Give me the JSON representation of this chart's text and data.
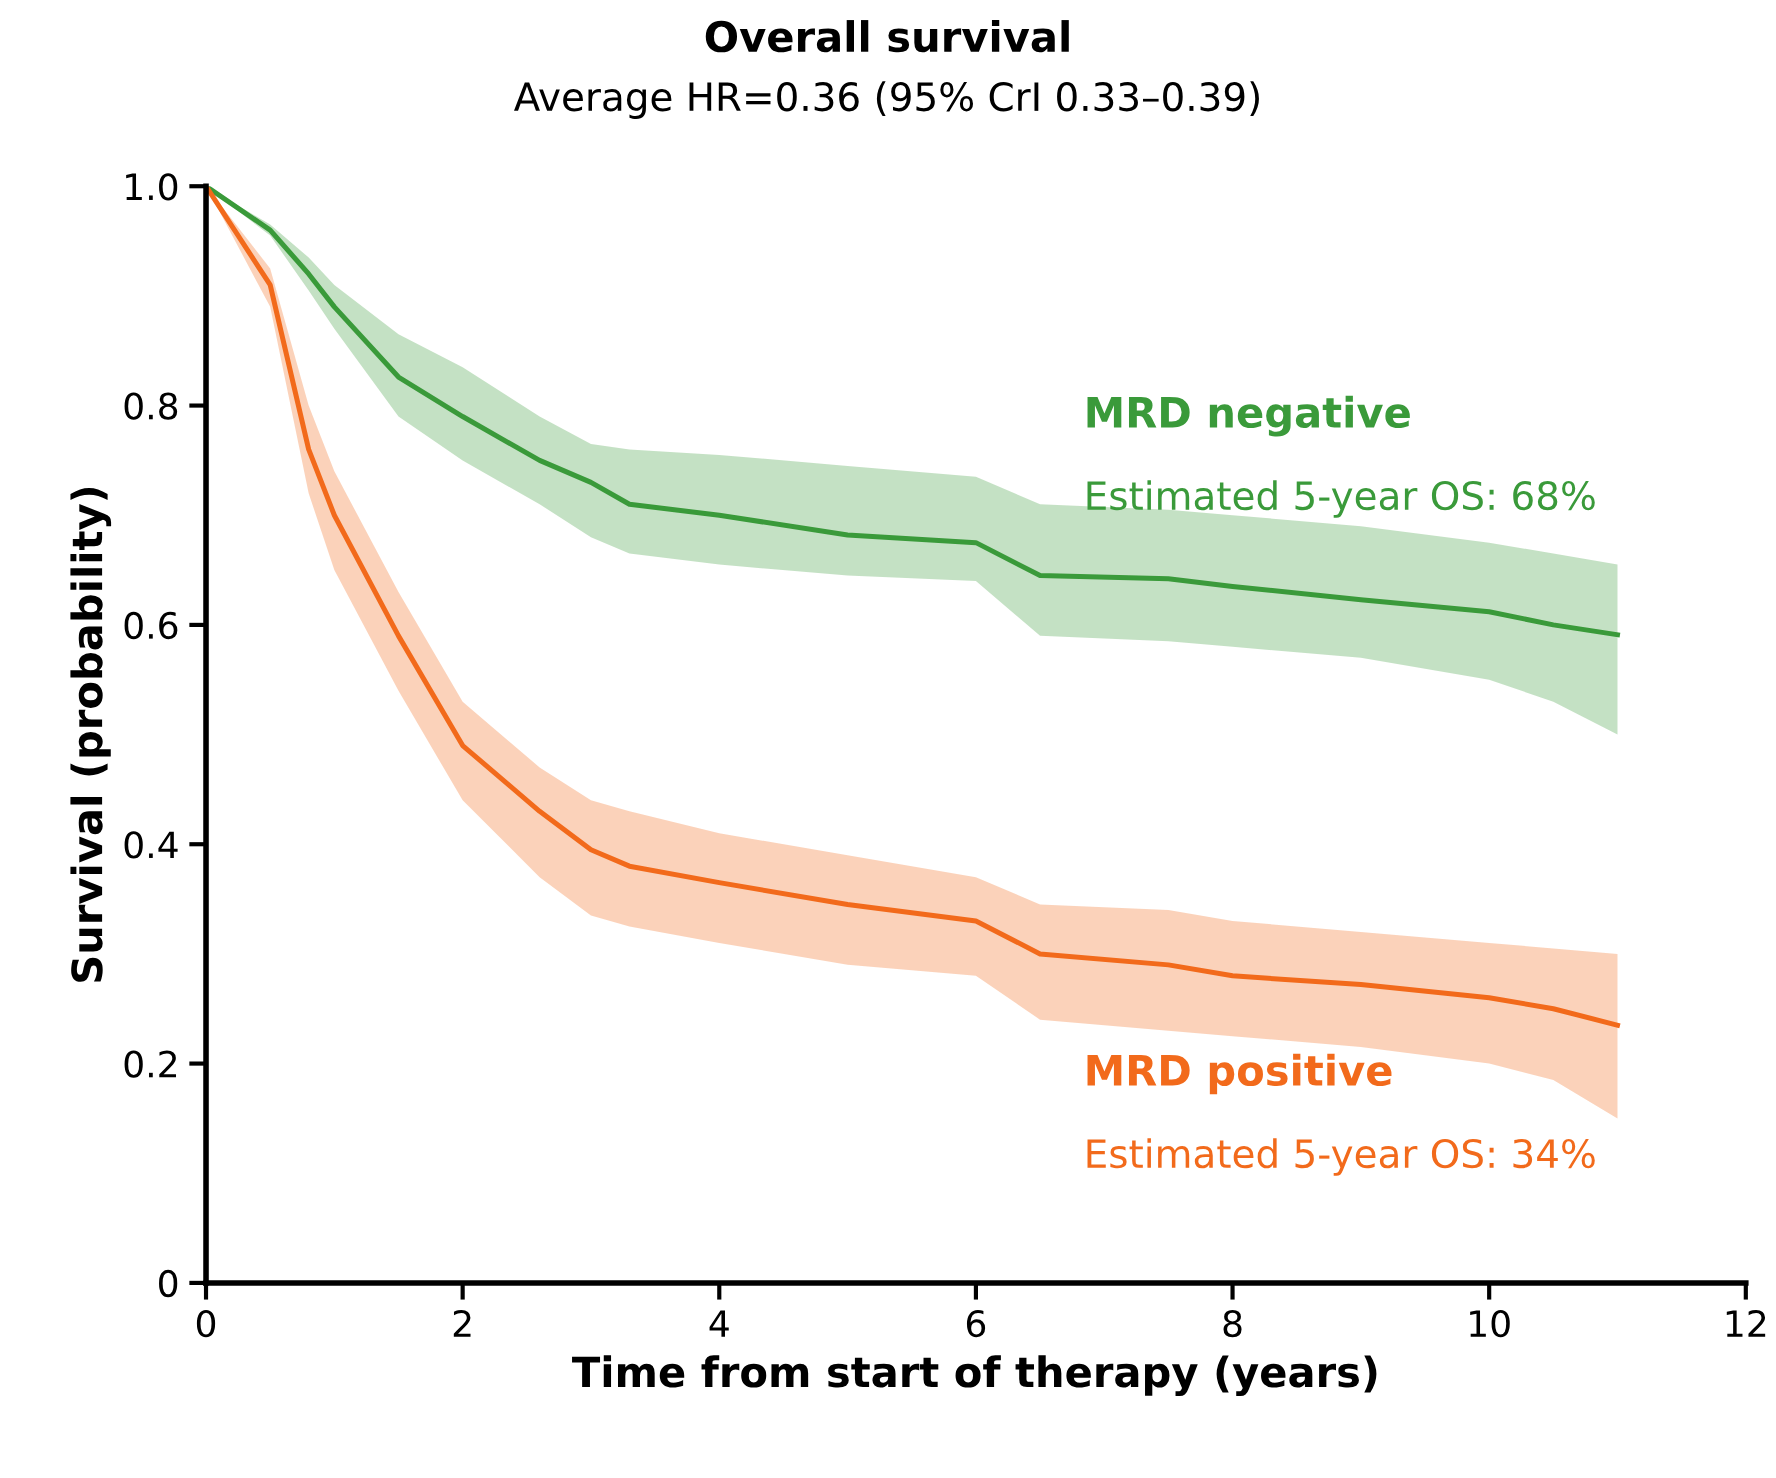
{
  "chart_data": {
    "type": "line",
    "title": "Overall survival",
    "subtitle": "Average HR=0.36 (95% CrI 0.33–0.39)",
    "xlabel": "Time from start of therapy (years)",
    "ylabel": "Survival (probability)",
    "x": [
      0,
      0.5,
      0.8,
      1,
      1.5,
      2,
      2.6,
      3,
      3.3,
      4,
      5,
      6,
      6.5,
      7.5,
      8,
      9,
      10,
      10.5,
      11
    ],
    "series": [
      {
        "name": "MRD negative",
        "color": "#3a9a3a",
        "values": [
          1.0,
          0.96,
          0.92,
          0.89,
          0.826,
          0.79,
          0.75,
          0.73,
          0.71,
          0.7,
          0.682,
          0.675,
          0.645,
          0.642,
          0.635,
          0.623,
          0.612,
          0.6,
          0.591
        ],
        "upper": [
          1.0,
          0.965,
          0.935,
          0.91,
          0.865,
          0.835,
          0.79,
          0.765,
          0.76,
          0.755,
          0.745,
          0.735,
          0.71,
          0.705,
          0.7,
          0.69,
          0.675,
          0.665,
          0.655
        ],
        "lower": [
          1.0,
          0.955,
          0.905,
          0.87,
          0.79,
          0.75,
          0.71,
          0.68,
          0.665,
          0.655,
          0.645,
          0.64,
          0.59,
          0.585,
          0.58,
          0.57,
          0.55,
          0.53,
          0.5
        ]
      },
      {
        "name": "MRD positive",
        "color": "#f26a1b",
        "values": [
          1.0,
          0.91,
          0.76,
          0.7,
          0.59,
          0.49,
          0.43,
          0.395,
          0.38,
          0.365,
          0.345,
          0.33,
          0.3,
          0.29,
          0.28,
          0.272,
          0.26,
          0.25,
          0.235
        ],
        "upper": [
          1.0,
          0.925,
          0.8,
          0.74,
          0.63,
          0.53,
          0.47,
          0.44,
          0.43,
          0.41,
          0.39,
          0.37,
          0.345,
          0.34,
          0.33,
          0.32,
          0.31,
          0.305,
          0.3
        ],
        "lower": [
          1.0,
          0.89,
          0.72,
          0.65,
          0.54,
          0.44,
          0.37,
          0.335,
          0.325,
          0.31,
          0.29,
          0.28,
          0.24,
          0.23,
          0.225,
          0.215,
          0.2,
          0.185,
          0.15
        ]
      }
    ],
    "annotations": [
      "Estimated 5-year OS: 68%",
      "Estimated 5-year OS: 34%"
    ],
    "xlim": [
      0,
      12
    ],
    "xticks": [
      0,
      2,
      4,
      6,
      8,
      10,
      12
    ],
    "ylim": [
      0,
      1.0
    ],
    "yticks": [
      0,
      0.2,
      0.4,
      0.6,
      0.8,
      {
        "value": 1.0,
        "label": "1.0"
      }
    ],
    "grid": false,
    "legend": false,
    "marker": "none",
    "line_style": "solid"
  }
}
